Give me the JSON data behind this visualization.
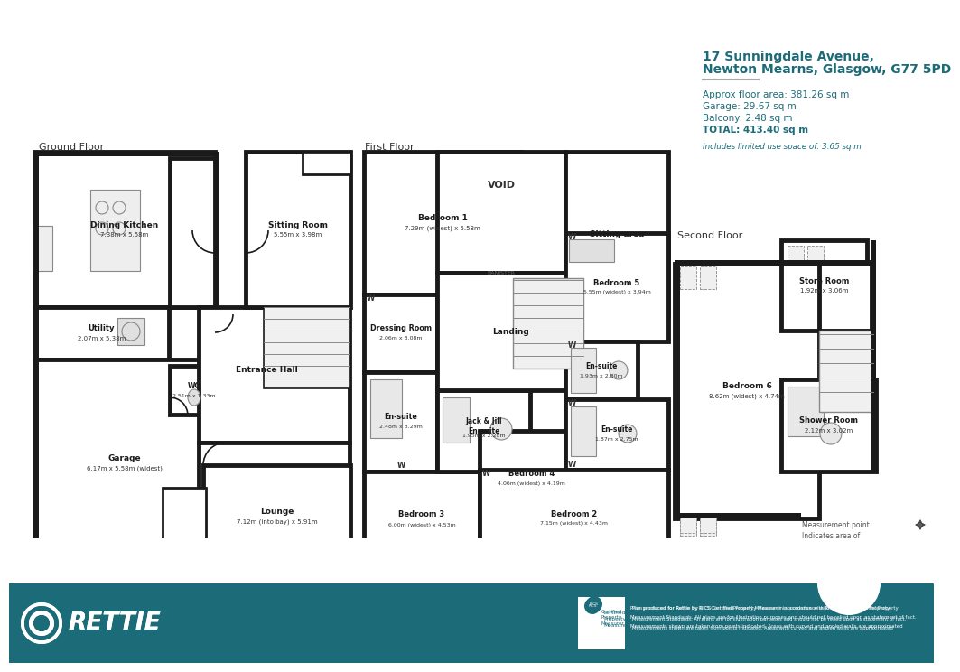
{
  "address_line1": "17 Sunningdale Avenue,",
  "address_line2": "Newton Mearns, Glasgow, G77 5PD",
  "area_info": [
    "Approx floor area: 381.26 sq m",
    "Garage: 29.67 sq m",
    "Balcony: 2.48 sq m",
    "TOTAL: 413.40 sq m"
  ],
  "limited_use": "Includes limited use space of: 3.65 sq m",
  "wall_color": "#1a1a1a",
  "room_color": "#ffffff",
  "teal": "#1b6b78",
  "text_dark": "#222222",
  "text_mid": "#444444",
  "footer_teal": "#1b6b78",
  "note_line1": "Plan produced for Rettie by RICS Certified Property Measurer in accordance with RICS International Property",
  "note_line2": "Measurement Standards. All plans are for illustration purposes and should not be relied upon as statement of fact.",
  "note_line3": "Measurements shown are taken from points indicated. Areas with curved and angled walls are approximated"
}
